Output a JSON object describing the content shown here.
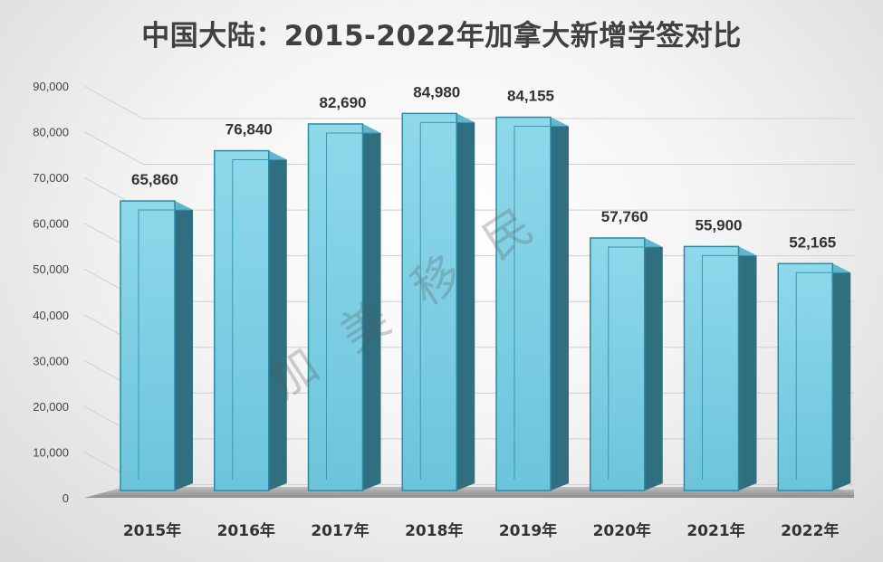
{
  "chart_data": {
    "type": "bar",
    "title": "中国大陆：2015-2022年加拿大新增学签对比",
    "categories": [
      "2015年",
      "2016年",
      "2017年",
      "2018年",
      "2019年",
      "2020年",
      "2021年",
      "2022年"
    ],
    "values": [
      65860,
      76840,
      82690,
      84980,
      84155,
      57760,
      55900,
      52165
    ],
    "value_labels": [
      "65,860",
      "76,840",
      "82,690",
      "84,980",
      "84,155",
      "57,760",
      "55,900",
      "52,165"
    ],
    "ylim": [
      0,
      90000
    ],
    "yticks": [
      0,
      10000,
      20000,
      30000,
      40000,
      50000,
      60000,
      70000,
      80000,
      90000
    ],
    "ytick_labels": [
      "0",
      "10,000",
      "20,000",
      "30,000",
      "40,000",
      "50,000",
      "60,000",
      "70,000",
      "80,000",
      "90,000"
    ],
    "xlabel": "",
    "ylabel": "",
    "grid": true,
    "legend": "none",
    "style": "3d-column",
    "bar_color": "#6cc4dc",
    "bar_side_color": "#2f6f80",
    "gridline_color": "#d0d0d0",
    "label_color": "#333333"
  },
  "watermark": "加美移民"
}
